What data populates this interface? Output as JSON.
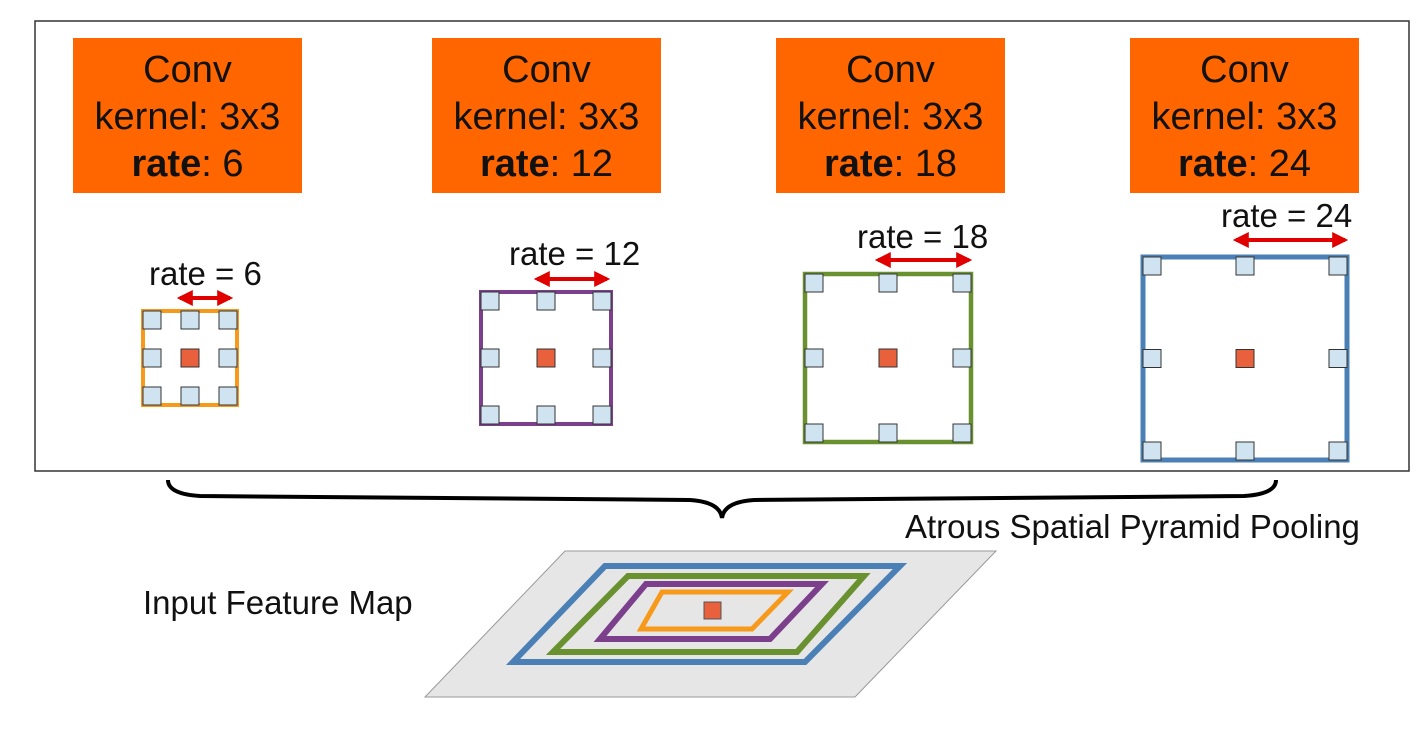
{
  "panels": [
    {
      "title": "Conv",
      "kernel_label": "kernel",
      "kernel_value": "3x3",
      "rate_label": "rate",
      "rate_value": "6",
      "rate_text": "rate = 6",
      "color": "#f79a1b"
    },
    {
      "title": "Conv",
      "kernel_label": "kernel",
      "kernel_value": "3x3",
      "rate_label": "rate",
      "rate_value": "12",
      "rate_text": "rate = 12",
      "color": "#7b3f8c"
    },
    {
      "title": "Conv",
      "kernel_label": "kernel",
      "kernel_value": "3x3",
      "rate_label": "rate",
      "rate_value": "18",
      "rate_text": "rate = 18",
      "color": "#6a9130"
    },
    {
      "title": "Conv",
      "kernel_label": "kernel",
      "kernel_value": "3x3",
      "rate_label": "rate",
      "rate_value": "24",
      "rate_text": "rate = 24",
      "color": "#4a80b5"
    }
  ],
  "aspp_label": "Atrous Spatial Pyramid Pooling",
  "input_label": "Input Feature Map",
  "colors": {
    "conv_box": "#ff6600",
    "center_cell": "#e8603c",
    "sample_cell": "#cfe3f0",
    "arrow": "#e00000",
    "feature_map": "#e6e6e6"
  }
}
